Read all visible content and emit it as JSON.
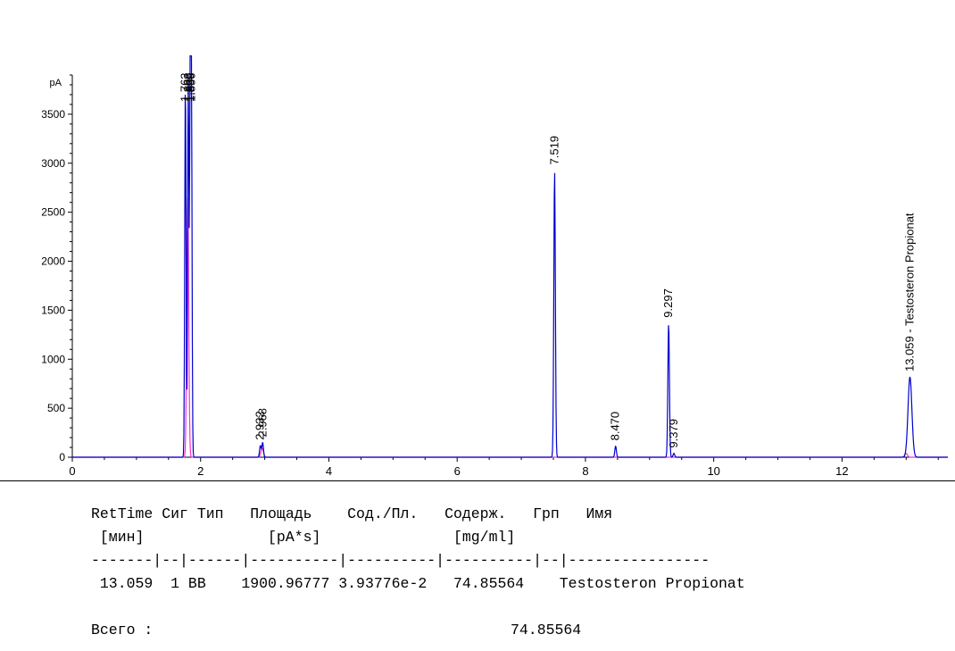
{
  "chart_data": {
    "type": "line",
    "ylabel": "pA",
    "xlim": [
      0,
      13.65
    ],
    "ylim": [
      0,
      3900
    ],
    "x_ticks": [
      "0",
      "2",
      "4",
      "6",
      "8",
      "10",
      "12"
    ],
    "y_ticks": [
      "0",
      "500",
      "1000",
      "1500",
      "2000",
      "2500",
      "3000",
      "3500"
    ],
    "peaks": [
      {
        "rt": 1.763,
        "height": 3850,
        "label": "1.763"
      },
      {
        "rt": 1.808,
        "height": 3850,
        "label": "1.808"
      },
      {
        "rt": 1.839,
        "height": 3850,
        "label": "1.839"
      },
      {
        "rt": 1.856,
        "height": 3850,
        "label": "1.856"
      },
      {
        "rt": 2.932,
        "height": 120,
        "label": "2.932"
      },
      {
        "rt": 2.968,
        "height": 150,
        "label": "2.968"
      },
      {
        "rt": 7.519,
        "height": 2930,
        "label": "7.519"
      },
      {
        "rt": 8.47,
        "height": 115,
        "label": "8.470"
      },
      {
        "rt": 9.297,
        "height": 1370,
        "label": "9.297"
      },
      {
        "rt": 9.379,
        "height": 40,
        "label": "9.379"
      },
      {
        "rt": 13.059,
        "height": 820,
        "label": "13.059 -  Testosteron Propionat"
      }
    ],
    "pink_trace_peaks": [
      {
        "rt": 1.8,
        "height": 2680
      },
      {
        "rt": 2.96,
        "height": 90
      },
      {
        "rt": 13.0,
        "height": 40
      }
    ],
    "colors": {
      "main": "#0000cc",
      "secondary": "#ff33cc",
      "axis": "#000000"
    }
  },
  "report": {
    "header1": "RetTime Сиг Тип   Площадь    Сод./Пл.   Содерж.   Грп   Имя",
    "header2": " [мин]              [pA*s]               [mg/ml]",
    "divider": "-------|--|------|----------|----------|----------|--|----------------",
    "row": " 13.059  1 BB    1900.96777 3.93776e-2   74.85564    Testosteron Propionat",
    "total_label": "Всего :",
    "total_value": "74.85564"
  }
}
